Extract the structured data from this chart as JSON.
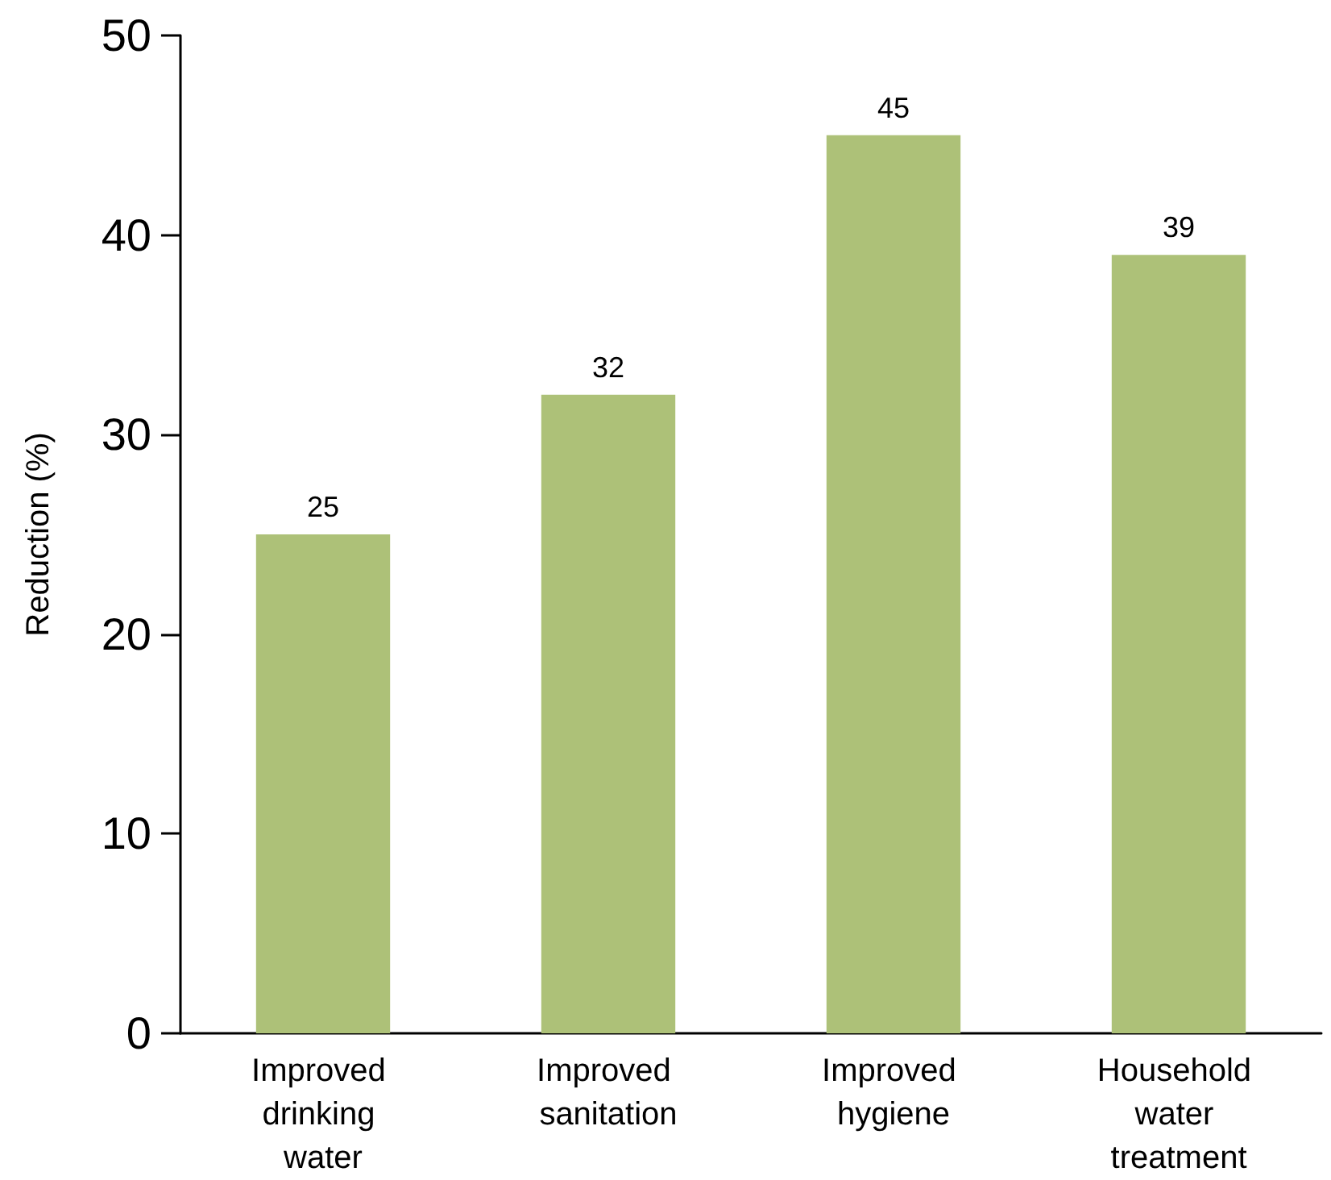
{
  "chart_data": {
    "type": "bar",
    "ylabel": "Reduction (%)",
    "categories": [
      "Improved drinking water",
      "Improved sanitation",
      "Improved hygiene",
      "Household water treatment"
    ],
    "values": [
      25,
      32,
      45,
      39
    ],
    "color": "#adc178",
    "ylim": [
      0,
      50
    ],
    "yticks": [
      0,
      10,
      20,
      30,
      40,
      50
    ],
    "grid": false,
    "data_labels": true
  }
}
